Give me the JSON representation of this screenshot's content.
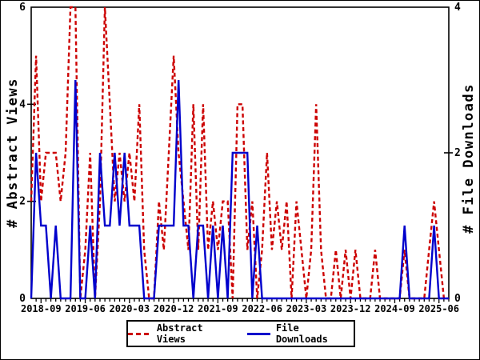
{
  "chart_data": {
    "type": "line",
    "title": "",
    "x_range": {
      "start_month": "2018-07",
      "end_month": "2025-08",
      "points": 86
    },
    "x_tick_labels": [
      "2018-09",
      "2019-06",
      "2020-03",
      "2020-12",
      "2021-09",
      "2022-06",
      "2023-03",
      "2023-12",
      "2024-09",
      "2025-06"
    ],
    "x_tick_label_indices": [
      2,
      11,
      20,
      29,
      38,
      47,
      56,
      65,
      74,
      83
    ],
    "left_axis": {
      "label": "# Abstract Views",
      "min": 0,
      "max": 6,
      "ticks": [
        0,
        2,
        4,
        6
      ]
    },
    "right_axis": {
      "label": "# File Downloads",
      "min": 0,
      "max": 4,
      "ticks": [
        0,
        2,
        4
      ]
    },
    "grid": false,
    "legend_position": "bottom-center",
    "series": [
      {
        "name": "Abstract Views",
        "axis": "left",
        "style": "dashed",
        "color": "#cc0000",
        "values": [
          2,
          5,
          2,
          3,
          3,
          3,
          2,
          3,
          6,
          6,
          0,
          1,
          3,
          0,
          2,
          6,
          4,
          2,
          3,
          2,
          3,
          2,
          4,
          1,
          0,
          0,
          2,
          1,
          3,
          5,
          3,
          2,
          1,
          4,
          1,
          4,
          1,
          2,
          1,
          2,
          2,
          0,
          4,
          4,
          1,
          2,
          0,
          1,
          3,
          1,
          2,
          1,
          2,
          0,
          2,
          1,
          0,
          1,
          4,
          1,
          0,
          0,
          1,
          0,
          1,
          0,
          1,
          0,
          0,
          0,
          1,
          0,
          0,
          0,
          0,
          0,
          1,
          0,
          0,
          0,
          0,
          1,
          2,
          1,
          0,
          0
        ]
      },
      {
        "name": "File Downloads",
        "axis": "right",
        "style": "solid",
        "color": "#0000cc",
        "values": [
          0,
          2,
          1,
          1,
          0,
          1,
          0,
          0,
          0,
          3,
          0,
          0,
          1,
          0,
          2,
          1,
          1,
          2,
          1,
          2,
          1,
          1,
          1,
          0,
          0,
          0,
          1,
          1,
          1,
          1,
          3,
          1,
          1,
          0,
          1,
          1,
          0,
          1,
          0,
          1,
          0,
          2,
          2,
          2,
          2,
          0,
          1,
          0,
          0,
          0,
          0,
          0,
          0,
          0,
          0,
          0,
          0,
          0,
          0,
          0,
          0,
          0,
          0,
          0,
          0,
          0,
          0,
          0,
          0,
          0,
          0,
          0,
          0,
          0,
          0,
          0,
          1,
          0,
          0,
          0,
          0,
          0,
          1,
          0,
          0,
          0
        ]
      }
    ]
  },
  "legend": {
    "items": [
      {
        "label": "Abstract Views",
        "color": "#cc0000",
        "style": "dashed"
      },
      {
        "label": "File Downloads",
        "color": "#0000cc",
        "style": "solid"
      }
    ]
  },
  "colors": {
    "axis": "#000000",
    "background": "#ffffff",
    "text": "#000000"
  }
}
